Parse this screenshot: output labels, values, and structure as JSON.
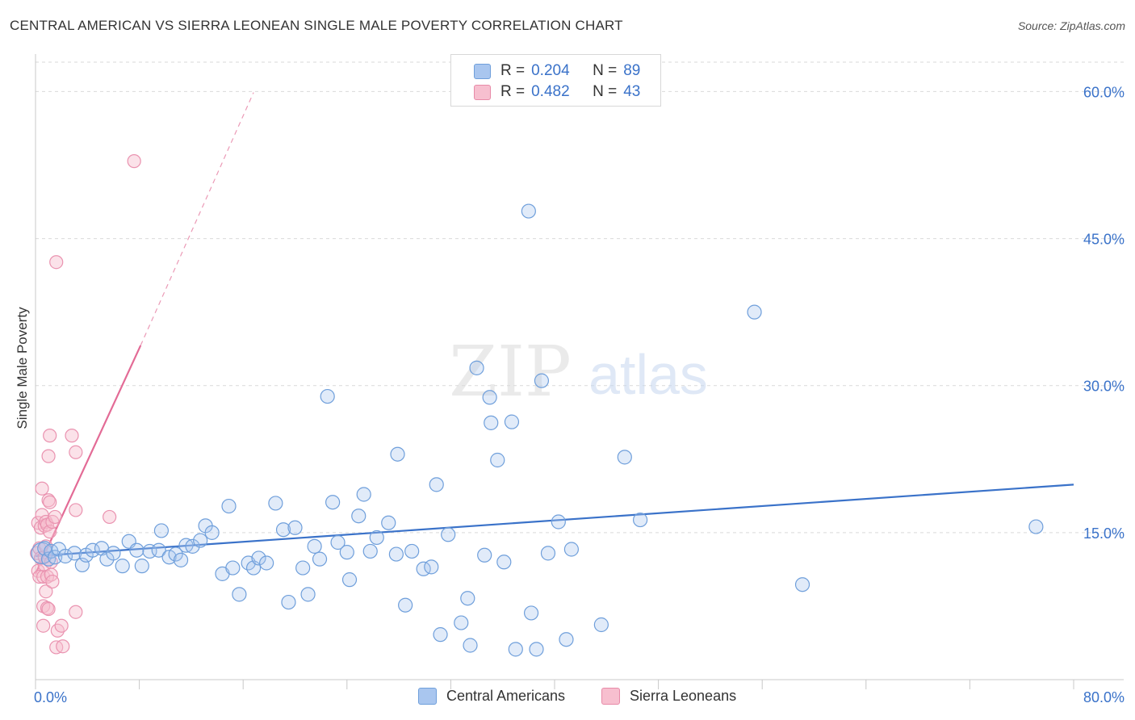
{
  "title": "CENTRAL AMERICAN VS SIERRA LEONEAN SINGLE MALE POVERTY CORRELATION CHART",
  "source": "Source: ZipAtlas.com",
  "watermark": {
    "zip": "ZIP",
    "atlas": "atlas"
  },
  "legend": {
    "rows": [
      {
        "r_label": "R =",
        "r_value": "0.204",
        "n_label": "N =",
        "n_value": "89",
        "color": "#a9c6ef",
        "border": "#6f9fdb"
      },
      {
        "r_label": "R =",
        "r_value": "0.482",
        "n_label": "N =",
        "n_value": "43",
        "color": "#f7bfcf",
        "border": "#e88aa8"
      }
    ]
  },
  "bottom_legend": [
    {
      "label": "Central Americans",
      "color": "#a9c6ef",
      "border": "#6f9fdb"
    },
    {
      "label": "Sierra Leoneans",
      "color": "#f7bfcf",
      "border": "#e88aa8"
    }
  ],
  "chart_data": {
    "type": "scatter",
    "title": "CENTRAL AMERICAN VS SIERRA LEONEAN SINGLE MALE POVERTY CORRELATION CHART",
    "xlabel": "",
    "ylabel": "Single Male Poverty",
    "xlim": [
      0,
      80
    ],
    "ylim": [
      0,
      63
    ],
    "x_tick_labels": [
      "0.0%",
      "80.0%"
    ],
    "y_ticks": [
      15,
      30,
      45,
      60
    ],
    "y_tick_labels": [
      "15.0%",
      "30.0%",
      "45.0%",
      "60.0%"
    ],
    "grid": true,
    "legend_position": "top-center",
    "colors": {
      "central": "#3a72c9",
      "sierra": "#e36b96"
    },
    "series": [
      {
        "name": "Central Americans",
        "points": [
          [
            0.5,
            12.9
          ],
          [
            0.7,
            13.4
          ],
          [
            1.0,
            12.3
          ],
          [
            1.2,
            13.1
          ],
          [
            1.5,
            12.5
          ],
          [
            1.8,
            13.3
          ],
          [
            2.3,
            12.6
          ],
          [
            3.0,
            12.9
          ],
          [
            3.6,
            11.7
          ],
          [
            3.9,
            12.7
          ],
          [
            4.4,
            13.2
          ],
          [
            5.1,
            13.4
          ],
          [
            5.5,
            12.3
          ],
          [
            6.0,
            12.9
          ],
          [
            6.7,
            11.6
          ],
          [
            7.2,
            14.1
          ],
          [
            7.8,
            13.2
          ],
          [
            8.2,
            11.6
          ],
          [
            8.8,
            13.1
          ],
          [
            9.5,
            13.2
          ],
          [
            9.7,
            15.2
          ],
          [
            10.3,
            12.5
          ],
          [
            10.8,
            12.8
          ],
          [
            11.2,
            12.2
          ],
          [
            11.6,
            13.7
          ],
          [
            12.1,
            13.6
          ],
          [
            12.7,
            14.2
          ],
          [
            13.1,
            15.7
          ],
          [
            13.6,
            15.0
          ],
          [
            14.4,
            10.8
          ],
          [
            14.9,
            17.7
          ],
          [
            15.2,
            11.4
          ],
          [
            15.7,
            8.7
          ],
          [
            16.4,
            11.9
          ],
          [
            16.8,
            11.4
          ],
          [
            17.2,
            12.4
          ],
          [
            17.8,
            11.9
          ],
          [
            18.5,
            18.0
          ],
          [
            19.1,
            15.3
          ],
          [
            19.5,
            7.9
          ],
          [
            20.0,
            15.5
          ],
          [
            20.6,
            11.4
          ],
          [
            21.0,
            8.7
          ],
          [
            21.5,
            13.6
          ],
          [
            21.9,
            12.3
          ],
          [
            22.5,
            28.9
          ],
          [
            22.9,
            18.1
          ],
          [
            23.3,
            14.0
          ],
          [
            24.0,
            13.0
          ],
          [
            24.2,
            10.2
          ],
          [
            24.9,
            16.7
          ],
          [
            25.3,
            18.9
          ],
          [
            25.8,
            13.1
          ],
          [
            26.3,
            14.5
          ],
          [
            27.2,
            16.0
          ],
          [
            27.8,
            12.8
          ],
          [
            27.9,
            23.0
          ],
          [
            28.5,
            7.6
          ],
          [
            29.0,
            13.1
          ],
          [
            29.9,
            11.3
          ],
          [
            30.5,
            11.5
          ],
          [
            30.9,
            19.9
          ],
          [
            31.2,
            4.6
          ],
          [
            31.8,
            14.8
          ],
          [
            32.8,
            5.8
          ],
          [
            33.3,
            8.3
          ],
          [
            33.5,
            3.5
          ],
          [
            34.0,
            31.8
          ],
          [
            35.0,
            28.8
          ],
          [
            34.6,
            12.7
          ],
          [
            35.1,
            26.2
          ],
          [
            35.6,
            22.4
          ],
          [
            36.1,
            12.0
          ],
          [
            36.7,
            26.3
          ],
          [
            37.0,
            3.1
          ],
          [
            38.2,
            6.8
          ],
          [
            38.0,
            47.8
          ],
          [
            38.6,
            3.1
          ],
          [
            39.0,
            30.5
          ],
          [
            39.5,
            12.9
          ],
          [
            40.3,
            16.1
          ],
          [
            40.9,
            4.1
          ],
          [
            41.3,
            13.3
          ],
          [
            43.6,
            5.6
          ],
          [
            45.4,
            22.7
          ],
          [
            46.6,
            16.3
          ],
          [
            55.4,
            37.5
          ],
          [
            59.1,
            9.7
          ],
          [
            77.1,
            15.6
          ]
        ],
        "trend": [
          [
            0.0,
            12.6
          ],
          [
            80.0,
            19.9
          ]
        ]
      },
      {
        "name": "Sierra Leoneans",
        "points": [
          [
            0.1,
            12.9
          ],
          [
            0.2,
            11.1
          ],
          [
            0.2,
            16.0
          ],
          [
            0.3,
            10.5
          ],
          [
            0.3,
            13.4
          ],
          [
            0.4,
            12.4
          ],
          [
            0.4,
            15.5
          ],
          [
            0.5,
            16.8
          ],
          [
            0.5,
            19.5
          ],
          [
            0.6,
            5.5
          ],
          [
            0.6,
            7.5
          ],
          [
            0.6,
            10.5
          ],
          [
            0.7,
            11.7
          ],
          [
            0.7,
            12.5
          ],
          [
            0.7,
            15.7
          ],
          [
            0.8,
            9.0
          ],
          [
            0.8,
            13.6
          ],
          [
            0.8,
            16.1
          ],
          [
            0.9,
            7.3
          ],
          [
            0.9,
            10.5
          ],
          [
            0.9,
            15.8
          ],
          [
            1.0,
            18.3
          ],
          [
            1.0,
            22.8
          ],
          [
            1.0,
            7.2
          ],
          [
            1.1,
            15.1
          ],
          [
            1.1,
            18.1
          ],
          [
            1.1,
            24.9
          ],
          [
            1.2,
            10.7
          ],
          [
            1.2,
            12.0
          ],
          [
            1.3,
            10.0
          ],
          [
            1.3,
            16.1
          ],
          [
            1.5,
            16.6
          ],
          [
            1.6,
            42.6
          ],
          [
            1.6,
            3.3
          ],
          [
            1.7,
            5.0
          ],
          [
            2.0,
            5.5
          ],
          [
            2.1,
            3.4
          ],
          [
            2.8,
            24.9
          ],
          [
            3.1,
            23.2
          ],
          [
            3.1,
            17.3
          ],
          [
            3.1,
            6.9
          ],
          [
            5.7,
            16.6
          ],
          [
            7.6,
            52.9
          ]
        ],
        "trend": [
          [
            0.0,
            10.8
          ],
          [
            8.1,
            34.1
          ]
        ],
        "trend_extension": [
          [
            8.1,
            34.1
          ],
          [
            16.8,
            59.9
          ]
        ]
      }
    ]
  }
}
